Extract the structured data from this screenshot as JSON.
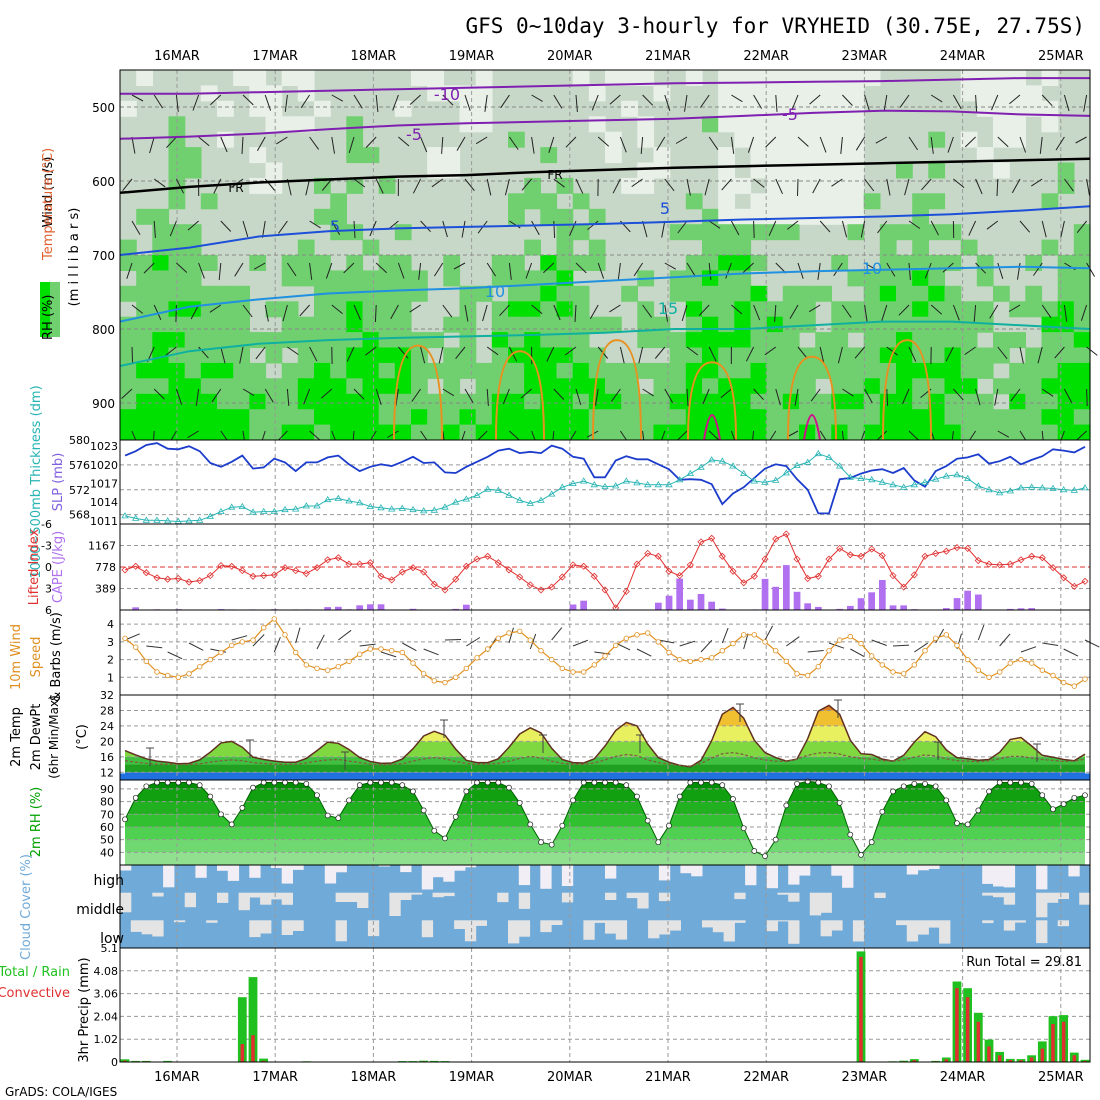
{
  "title": "GFS 0~10day 3-hourly for VRYHEID (30.75E, 27.75S)",
  "credit": "GrADS: COLA/IGES",
  "days": [
    "16MAR",
    "17MAR",
    "18MAR",
    "19MAR",
    "20MAR",
    "21MAR",
    "22MAR",
    "23MAR",
    "24MAR",
    "25MAR"
  ],
  "colors": {
    "rh_dark": "#00e000",
    "rh_mid": "#70d070",
    "rh_light": "#c8d8c8",
    "rh_pale": "#e8f0e8",
    "slp": "#1c3ccc",
    "thickness": "#28b4b4",
    "lifted": "#e03030",
    "cape": "#b070f0",
    "wind": "#e09020",
    "temp_fill": "#20a020",
    "rh2m": "#00b000",
    "cloud": "#70aad8",
    "precip_total": "#20c020",
    "precip_conv": "#e03030"
  },
  "chart_data": [
    {
      "type": "heatmap",
      "name": "upper-air",
      "ylabel_lines": [
        "Wind (m/s)",
        "Temperature (°C)",
        "RH (%)",
        "(millibars)"
      ],
      "ylabel_parts": {
        "wind": "Wind (m/s)",
        "temp": "Temperature (°C)",
        "rh": "RH (%)",
        "pres": "(m i l l i b a r s)"
      },
      "y_ticks": [
        500,
        600,
        700,
        800,
        900
      ],
      "ylim": [
        450,
        950
      ],
      "contour_labels": [
        "-10",
        "-5",
        "-5",
        "FR",
        "FR",
        "5",
        "5",
        "10",
        "10",
        "15"
      ],
      "isotherms": [
        {
          "label": "-10",
          "p": [
            482,
            482,
            480,
            478,
            476,
            474,
            472,
            470,
            468,
            467,
            466,
            465,
            463,
            461,
            461
          ]
        },
        {
          "label": "-5",
          "p": [
            543,
            540,
            536,
            530,
            525,
            522,
            520,
            518,
            516,
            512,
            508,
            505,
            506,
            510,
            512
          ]
        },
        {
          "label": "FR",
          "p": [
            616,
            608,
            602,
            598,
            594,
            592,
            588,
            585,
            582,
            580,
            578,
            576,
            574,
            572,
            570
          ]
        },
        {
          "label": "5",
          "p": [
            700,
            690,
            675,
            668,
            664,
            662,
            660,
            658,
            655,
            652,
            650,
            648,
            645,
            640,
            634
          ]
        },
        {
          "label": "10",
          "p": [
            790,
            770,
            760,
            752,
            748,
            745,
            740,
            735,
            730,
            725,
            722,
            720,
            718,
            716,
            718
          ]
        },
        {
          "label": "15",
          "p": [
            850,
            830,
            820,
            815,
            812,
            810,
            808,
            805,
            800,
            800,
            795,
            790,
            790,
            795,
            800
          ]
        }
      ]
    },
    {
      "type": "line",
      "name": "thickness-slp",
      "ylabel_left": "1000~500mb Thickness (dm)",
      "ylabel_right": "SLP (mb)",
      "left_ticks": [
        "580",
        "576",
        "572",
        "568"
      ],
      "right_ticks": [
        "1023",
        "1020",
        "1017",
        "1014",
        "1011"
      ],
      "left_ylim": [
        566.5,
        580
      ],
      "right_ylim": [
        1010.5,
        1024
      ],
      "series": [
        {
          "name": "SLP",
          "axis": "right",
          "values": [
            1021.5,
            1022.2,
            1023.2,
            1023.5,
            1022.6,
            1022.5,
            1023.0,
            1022.2,
            1020.3,
            1019.7,
            1020.5,
            1021.5,
            1019.4,
            1019.6,
            1021.0,
            1020.4,
            1019.0,
            1020.4,
            1020.4,
            1021.2,
            1021.5,
            1020.1,
            1019.0,
            1019.7,
            1020.1,
            1019.8,
            1020.5,
            1021.3,
            1020.3,
            1020.4,
            1018.8,
            1018.7,
            1019.7,
            1020.5,
            1021.3,
            1022.3,
            1022.6,
            1021.9,
            1022.1,
            1021.9,
            1023.1,
            1022.6,
            1021.3,
            1021.0,
            1018.0,
            1018.0,
            1020.7,
            1021.4,
            1020.9,
            1020.9,
            1020.1,
            1019.3,
            1017.6,
            1017.7,
            1017.6,
            1016.9,
            1013.7,
            1015.4,
            1016.4,
            1017.9,
            1019.4,
            1020.1,
            1019.8,
            1017.7,
            1016.0,
            1012.2,
            1012.2,
            1017.7,
            1017.9,
            1018.6,
            1019.1,
            1019.3,
            1018.7,
            1019.5,
            1017.5,
            1016.5,
            1019.0,
            1019.8,
            1021.0,
            1021.2,
            1021.7,
            1020.2,
            1020.6,
            1021.3,
            1020.1,
            1020.8,
            1021.4,
            1022.5,
            1022.3,
            1022.0,
            1022.9
          ]
        },
        {
          "name": "Thickness",
          "axis": "left",
          "values": [
            567.8,
            567.4,
            567.1,
            567.1,
            567.0,
            566.9,
            567.0,
            567.1,
            567.7,
            568.5,
            569.2,
            569.3,
            568.4,
            568.5,
            568.5,
            568.8,
            568.9,
            569.4,
            569.4,
            570.4,
            570.6,
            570.2,
            569.9,
            569.3,
            569.1,
            568.9,
            569.0,
            568.8,
            568.6,
            568.7,
            569.2,
            570.0,
            570.5,
            571.1,
            572.1,
            571.9,
            571.1,
            570.3,
            569.8,
            570.3,
            571.3,
            572.4,
            573.0,
            573.4,
            572.8,
            572.5,
            572.6,
            573.4,
            573.1,
            572.8,
            572.8,
            572.8,
            573.6,
            574.6,
            575.6,
            576.8,
            576.6,
            575.8,
            574.6,
            573.4,
            573.2,
            573.5,
            574.7,
            575.9,
            576.4,
            577.8,
            577.2,
            575.8,
            574.0,
            573.8,
            573.6,
            573.2,
            572.8,
            572.4,
            572.8,
            573.2,
            573.7,
            574.2,
            574.4,
            573.8,
            572.6,
            572.0,
            571.5,
            571.8,
            572.3,
            572.4,
            572.3,
            572.2,
            572.0,
            571.9,
            572.3
          ]
        }
      ]
    },
    {
      "type": "bar",
      "name": "lifted-cape",
      "ylabel_left": "Lifted Index",
      "ylabel_right": "CAPE (J/kg)",
      "left_ticks": [
        "-6",
        "-3",
        "0",
        "3",
        "6"
      ],
      "right_ticks": [
        "1167",
        "778",
        "389"
      ],
      "left_ylim": [
        -6,
        6
      ],
      "cape_max": 1556,
      "lifted": [
        0.4,
        -0.1,
        0.8,
        1.5,
        1.7,
        1.6,
        2.1,
        1.9,
        1.2,
        -0.2,
        -0.1,
        0.5,
        1.3,
        1.2,
        1.1,
        0.1,
        0.5,
        0.9,
        0.1,
        -1.0,
        -1.3,
        -0.4,
        -0.4,
        -0.6,
        1.3,
        1.8,
        0.7,
        0.1,
        0.7,
        2.4,
        3.2,
        1.7,
        -0.1,
        -1.1,
        -1.5,
        -0.6,
        0.4,
        1.4,
        2.5,
        3.2,
        2.8,
        1.4,
        -0.3,
        -0.1,
        1.3,
        3.2,
        5.7,
        3.4,
        -0.4,
        -1.9,
        -1.5,
        0.6,
        1.2,
        -0.3,
        -3.5,
        -4.0,
        -1.5,
        0.6,
        2.2,
        1.3,
        -1.1,
        -3.9,
        -4.6,
        -1.1,
        1.6,
        1.3,
        -1.1,
        -2.6,
        -1.7,
        -1.5,
        -2.5,
        -1.6,
        1.2,
        2.8,
        1.1,
        -1.5,
        -1.9,
        -2.2,
        -2.7,
        -2.6,
        -0.9,
        -0.4,
        -0.3,
        -0.4,
        -1.0,
        -1.5,
        -1.3,
        0.1,
        1.5,
        2.7,
        2.0
      ],
      "cape": [
        0,
        48,
        0,
        12,
        5,
        14,
        0,
        5,
        6,
        17,
        11,
        0,
        10,
        0,
        14,
        0,
        10,
        10,
        2,
        53,
        58,
        13,
        85,
        104,
        104,
        0,
        0,
        21,
        7,
        1,
        0,
        20,
        96,
        2,
        0,
        4,
        0,
        2,
        0,
        0,
        0,
        0,
        99,
        169,
        2,
        0,
        0,
        0,
        0,
        0,
        132,
        258,
        568,
        187,
        289,
        150,
        26,
        0,
        9,
        10,
        563,
        420,
        812,
        329,
        121,
        56,
        0,
        20,
        75,
        214,
        320,
        542,
        83,
        84,
        14,
        3,
        0,
        34,
        216,
        350,
        281,
        0,
        0,
        20,
        30,
        35,
        0,
        0,
        0,
        0,
        0
      ]
    },
    {
      "type": "line",
      "name": "wind10m",
      "ylabel": "10m Wind Speed & Barbs (m/s)",
      "ylabel_parts": {
        "wind": "10m Wind",
        "speed": "Speed",
        "barbs": "& Barbs (m/s)"
      },
      "y_ticks": [
        "4",
        "3",
        "2",
        "1"
      ],
      "ylim": [
        0,
        4.8
      ],
      "values": [
        3.2,
        2.7,
        1.9,
        1.3,
        1.1,
        1.0,
        1.2,
        1.6,
        2.0,
        2.4,
        2.8,
        3.0,
        3.1,
        3.8,
        4.3,
        3.4,
        2.4,
        1.7,
        1.5,
        1.4,
        1.6,
        1.9,
        2.3,
        2.6,
        2.6,
        2.5,
        2.4,
        1.8,
        1.2,
        0.8,
        0.7,
        1.0,
        1.5,
        2.1,
        2.6,
        3.2,
        3.5,
        3.6,
        3.1,
        2.5,
        2.0,
        1.5,
        1.3,
        1.3,
        1.7,
        2.2,
        2.8,
        3.2,
        3.4,
        3.5,
        3.0,
        2.4,
        2.0,
        1.9,
        2.0,
        2.1,
        2.5,
        2.9,
        3.4,
        3.4,
        3.0,
        2.5,
        1.9,
        1.2,
        1.1,
        1.6,
        2.5,
        3.1,
        3.3,
        2.9,
        2.2,
        1.7,
        1.3,
        1.2,
        1.7,
        2.5,
        3.2,
        3.4,
        2.8,
        2.0,
        1.4,
        1.0,
        1.3,
        1.8,
        2.0,
        1.8,
        1.4,
        1.1,
        0.7,
        0.5,
        0.9
      ]
    },
    {
      "type": "area",
      "name": "temp2m",
      "ylabel": "2m Temp 2m DewPt (6hr Min/Max) (°C)",
      "ylabel_parts": {
        "temp": "2m Temp",
        "dew": "2m DewPt",
        "mm": "(6hr Min/Max)",
        "unit": "(°C)"
      },
      "y_ticks": [
        "32",
        "28",
        "24",
        "20",
        "16",
        "12"
      ],
      "ylim": [
        10,
        32
      ],
      "temp": [
        17.6,
        16.5,
        15.5,
        14.9,
        14.6,
        14.2,
        14.3,
        15.2,
        17.2,
        19.6,
        20.0,
        18.5,
        15.9,
        15.3,
        14.9,
        14.6,
        14.6,
        15.6,
        17.6,
        19.8,
        19.5,
        17.9,
        15.8,
        14.8,
        14.3,
        14.4,
        15.4,
        18.1,
        21.4,
        22.6,
        21.6,
        18.0,
        15.1,
        14.5,
        14.5,
        15.5,
        18.5,
        21.9,
        23.5,
        22.2,
        18.2,
        15.3,
        14.5,
        14.4,
        15.5,
        18.8,
        22.8,
        24.9,
        24.0,
        19.3,
        15.8,
        14.6,
        13.8,
        13.4,
        15.1,
        20.2,
        27.0,
        28.8,
        26.0,
        20.3,
        17.1,
        15.8,
        14.9,
        15.4,
        20.7,
        27.8,
        29.3,
        27.0,
        20.3,
        16.8,
        16.6,
        15.4,
        14.9,
        16.4,
        19.8,
        22.5,
        21.2,
        17.8,
        15.8,
        15.5,
        15.1,
        15.3,
        17.2,
        20.5,
        21.0,
        18.8,
        16.4,
        15.9,
        15.3,
        15.0,
        16.7
      ],
      "dew": [
        15.0,
        14.6,
        14.3,
        14.1,
        14.1,
        14.0,
        14.0,
        14.2,
        14.6,
        15.0,
        15.2,
        15.0,
        14.5,
        14.3,
        14.1,
        14.0,
        14.1,
        14.4,
        14.9,
        15.2,
        15.3,
        14.9,
        14.5,
        14.1,
        13.9,
        14.0,
        14.2,
        14.9,
        15.5,
        15.8,
        15.5,
        14.8,
        14.3,
        14.1,
        14.1,
        14.3,
        14.9,
        15.6,
        16.1,
        15.7,
        14.9,
        14.3,
        14.1,
        14.1,
        14.4,
        15.2,
        16.1,
        16.6,
        16.3,
        15.2,
        14.5,
        14.1,
        13.8,
        13.6,
        14.3,
        15.7,
        16.8,
        17.1,
        16.6,
        15.7,
        15.2,
        14.9,
        14.8,
        15.4,
        16.4,
        17.0,
        17.1,
        16.7,
        16.0,
        15.6,
        15.4,
        15.0,
        14.9,
        15.2,
        15.9,
        16.5,
        16.2,
        15.5,
        15.0,
        14.9,
        14.7,
        15.0,
        15.5,
        16.1,
        16.1,
        15.7,
        15.3,
        15.1,
        14.8,
        14.9,
        15.4
      ]
    },
    {
      "type": "area",
      "name": "rh2m",
      "ylabel": "2m RH (%)",
      "y_ticks": [
        "90",
        "80",
        "70",
        "60",
        "50",
        "40"
      ],
      "ylim": [
        30,
        97
      ],
      "values": [
        66,
        83,
        92,
        95,
        95,
        95,
        95,
        93,
        84,
        70,
        62,
        75,
        91,
        95,
        95,
        95,
        95,
        94,
        85,
        69,
        67,
        81,
        93,
        95,
        95,
        95,
        93,
        88,
        73,
        57,
        51,
        68,
        88,
        95,
        95,
        95,
        91,
        79,
        62,
        48,
        46,
        61,
        81,
        95,
        95,
        95,
        95,
        93,
        84,
        65,
        48,
        61,
        84,
        95,
        95,
        95,
        93,
        82,
        59,
        41,
        37,
        50,
        77,
        94,
        96,
        95,
        92,
        79,
        54,
        38,
        48,
        72,
        88,
        92,
        94,
        94,
        92,
        81,
        63,
        62,
        73,
        88,
        95,
        95,
        95,
        94,
        85,
        74,
        78,
        83,
        85
      ]
    },
    {
      "type": "heatmap",
      "name": "cloud",
      "ylabel": "Cloud Cover (%)",
      "levels": [
        "high",
        "middle",
        "low"
      ]
    },
    {
      "type": "bar",
      "name": "precip",
      "ylabel": "3hr Precip (mm)",
      "legend": [
        "Total / Rain",
        "Convective"
      ],
      "y_ticks": [
        "5.1",
        "4.08",
        "3.06",
        "2.04",
        "1.02",
        "0"
      ],
      "ylim": [
        0,
        5.1
      ],
      "run_total": "Run Total = 29.81",
      "values": [
        0.12,
        0.05,
        0.05,
        0.02,
        0.05,
        0.02,
        0.01,
        0.02,
        0,
        0,
        0.01,
        2.9,
        3.8,
        0.15,
        0,
        0,
        0,
        0.03,
        0,
        0.02,
        0,
        0.01,
        0.02,
        0.02,
        0,
        0,
        0.04,
        0.04,
        0.06,
        0.05,
        0.04,
        0.01,
        0,
        0,
        0,
        0,
        0,
        0,
        0,
        0,
        0,
        0,
        0,
        0,
        0,
        0,
        0,
        0,
        0,
        0,
        0,
        0,
        0,
        0,
        0,
        0.02,
        0.02,
        0.02,
        0,
        0,
        0,
        0,
        0,
        0,
        0,
        0,
        0,
        0,
        0,
        4.95,
        0,
        0,
        0.03,
        0.06,
        0.13,
        0,
        0.05,
        0.2,
        3.6,
        3.3,
        2.2,
        1.0,
        0.45,
        0.14,
        0.13,
        0.3,
        0.92,
        2.05,
        2.1,
        0.42,
        0.1,
        0,
        0,
        0
      ],
      "convective": [
        0.06,
        0.03,
        0.03,
        0.01,
        0.02,
        0.01,
        0,
        0.01,
        0,
        0,
        0,
        0.8,
        1.2,
        0.05,
        0,
        0,
        0,
        0.01,
        0,
        0,
        0,
        0,
        0.01,
        0.01,
        0,
        0,
        0.02,
        0.02,
        0.03,
        0.02,
        0.02,
        0,
        0,
        0,
        0,
        0,
        0,
        0,
        0,
        0,
        0,
        0,
        0,
        0,
        0,
        0,
        0,
        0,
        0,
        0,
        0,
        0,
        0,
        0,
        0,
        0.01,
        0.01,
        0.01,
        0,
        0,
        0,
        0,
        0,
        0,
        0,
        0,
        0,
        0,
        0,
        4.7,
        0,
        0,
        0.02,
        0.03,
        0.08,
        0,
        0.03,
        0.12,
        3.3,
        2.9,
        1.8,
        0.7,
        0.3,
        0.09,
        0.08,
        0.2,
        0.6,
        1.7,
        1.8,
        0.3,
        0.05,
        0,
        0,
        0
      ]
    }
  ]
}
